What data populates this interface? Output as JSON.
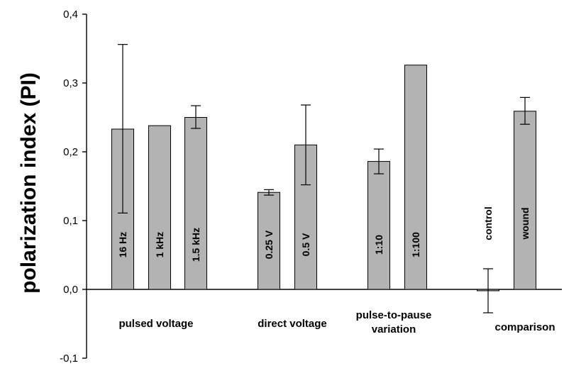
{
  "chart_data": {
    "type": "bar",
    "title": "",
    "xlabel": "",
    "ylabel": "polarization index (PI)",
    "ylim": [
      -0.1,
      0.4
    ],
    "yticks": [
      "-0,1",
      "0,0",
      "0,1",
      "0,2",
      "0,3",
      "0,4"
    ],
    "yticks_values": [
      -0.1,
      0.0,
      0.1,
      0.2,
      0.3,
      0.4
    ],
    "grid": false,
    "bar_color": "#b3b3b3",
    "groups": [
      {
        "label": "pulsed voltage",
        "bars": [
          {
            "label": "16 Hz",
            "value": 0.233,
            "err_low": 0.111,
            "err_high": 0.356
          },
          {
            "label": "1 kHz",
            "value": 0.238,
            "err_low": null,
            "err_high": null
          },
          {
            "label": "1.5 kHz",
            "value": 0.25,
            "err_low": 0.234,
            "err_high": 0.267
          }
        ]
      },
      {
        "label": "direct voltage",
        "bars": [
          {
            "label": "0.25 V",
            "value": 0.141,
            "err_low": 0.137,
            "err_high": 0.145
          },
          {
            "label": "0.5 V",
            "value": 0.21,
            "err_low": 0.152,
            "err_high": 0.268
          }
        ]
      },
      {
        "label": "pulse-to-pause variation",
        "label_lines": [
          "pulse-to-pause",
          "variation"
        ],
        "bars": [
          {
            "label": "1:10",
            "value": 0.186,
            "err_low": 0.168,
            "err_high": 0.204
          },
          {
            "label": "1:100",
            "value": 0.326,
            "err_low": null,
            "err_high": null
          }
        ]
      },
      {
        "label": "comparison",
        "bars": [
          {
            "label": "control",
            "value": -0.002,
            "err_low": -0.034,
            "err_high": 0.03
          },
          {
            "label": "wound",
            "value": 0.259,
            "err_low": 0.24,
            "err_high": 0.279
          }
        ]
      }
    ]
  }
}
